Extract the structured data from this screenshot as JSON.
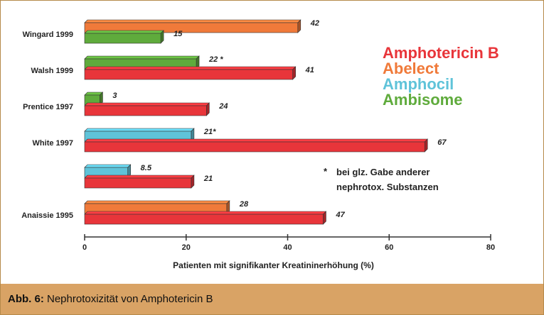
{
  "chart_data": {
    "type": "bar",
    "orientation": "horizontal",
    "xlabel": "Patienten mit signifikanter Kreatininerhöhung (%)",
    "xlim": [
      0,
      80
    ],
    "xticks": [
      "0",
      "20",
      "40",
      "60",
      "80"
    ],
    "groups": [
      {
        "label": "Wingard 1999",
        "bars": [
          {
            "series": "Abelect",
            "value": 42,
            "label": "42"
          },
          {
            "series": "Ambisome",
            "value": 15,
            "label": "15"
          }
        ]
      },
      {
        "label": "Walsh 1999",
        "bars": [
          {
            "series": "Ambisome",
            "value": 22,
            "label": "22 *"
          },
          {
            "series": "Amphotericin B",
            "value": 41,
            "label": "41"
          }
        ]
      },
      {
        "label": "Prentice 1997",
        "bars": [
          {
            "series": "Ambisome",
            "value": 3,
            "label": "3"
          },
          {
            "series": "Amphotericin B",
            "value": 24,
            "label": "24"
          }
        ]
      },
      {
        "label": "White 1997",
        "bars": [
          {
            "series": "Amphocil",
            "value": 21,
            "label": "21*"
          },
          {
            "series": "Amphotericin B",
            "value": 67,
            "label": "67"
          }
        ]
      },
      {
        "label": "",
        "bars": [
          {
            "series": "Amphocil",
            "value": 8.5,
            "label": "8.5"
          },
          {
            "series": "Amphotericin B",
            "value": 21,
            "label": "21"
          }
        ]
      },
      {
        "label": "Anaissie 1995",
        "bars": [
          {
            "series": "Abelect",
            "value": 28,
            "label": "28"
          },
          {
            "series": "Amphotericin B",
            "value": 47,
            "label": "47"
          }
        ]
      }
    ],
    "legend": [
      {
        "name": "Amphotericin B",
        "color": "#e8353a"
      },
      {
        "name": "Abelect",
        "color": "#f07a3a"
      },
      {
        "name": "Amphocil",
        "color": "#5fc3d9"
      },
      {
        "name": "Ambisome",
        "color": "#5fab3c"
      }
    ],
    "legend_position": "top-right",
    "footnote_marker": "*",
    "footnote_line1": "bei glz. Gabe anderer",
    "footnote_line2": "nephrotox. Substanzen"
  },
  "caption": {
    "label": "Abb. 6:",
    "text": " Nephrotoxizität von Amphotericin B"
  }
}
